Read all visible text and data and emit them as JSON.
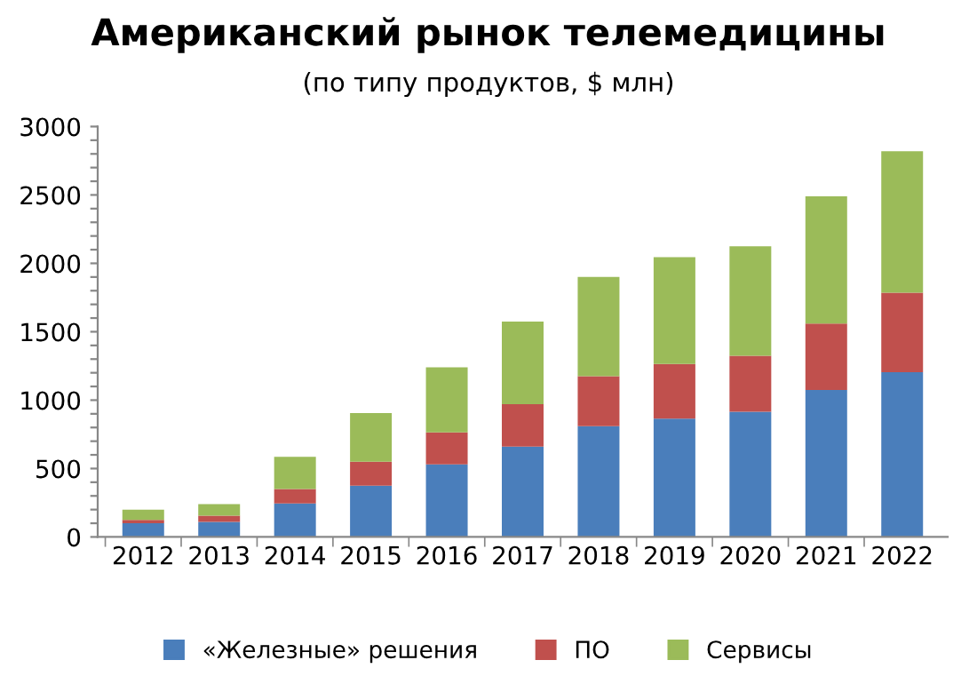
{
  "chart_data": {
    "type": "bar",
    "stacked": true,
    "title": "Американский рынок телемедицины",
    "subtitle": "(по типу продуктов, $ млн)",
    "categories": [
      "2012",
      "2013",
      "2014",
      "2015",
      "2016",
      "2017",
      "2018",
      "2019",
      "2020",
      "2021",
      "2022"
    ],
    "series": [
      {
        "name": "«Железные» решения",
        "color": "#4a7ebb",
        "values": [
          100,
          110,
          245,
          375,
          530,
          660,
          810,
          865,
          915,
          1075,
          1205
        ]
      },
      {
        "name": "ПО",
        "color": "#c0504d",
        "values": [
          25,
          45,
          105,
          175,
          235,
          310,
          365,
          400,
          410,
          485,
          580
        ]
      },
      {
        "name": "Сервисы",
        "color": "#9bbb59",
        "values": [
          75,
          85,
          235,
          355,
          475,
          605,
          725,
          780,
          800,
          930,
          1035
        ]
      }
    ],
    "ylim": [
      0,
      3000
    ],
    "yticks": [
      0,
      {
        "value": 100,
        "label": null
      },
      {
        "value": 200,
        "label": null
      },
      {
        "value": 300,
        "label": null
      },
      {
        "value": 400,
        "label": null
      },
      500,
      {
        "value": 600,
        "label": null
      },
      {
        "value": 700,
        "label": null
      },
      {
        "value": 800,
        "label": null
      },
      {
        "value": 900,
        "label": null
      },
      1000,
      {
        "value": 1100,
        "label": null
      },
      {
        "value": 1200,
        "label": null
      },
      {
        "value": 1300,
        "label": null
      },
      {
        "value": 1400,
        "label": null
      },
      1500,
      {
        "value": 1600,
        "label": null
      },
      {
        "value": 1700,
        "label": null
      },
      {
        "value": 1800,
        "label": null
      },
      {
        "value": 1900,
        "label": null
      },
      2000,
      {
        "value": 2100,
        "label": null
      },
      {
        "value": 2200,
        "label": null
      },
      {
        "value": 2300,
        "label": null
      },
      {
        "value": 2400,
        "label": null
      },
      2500,
      {
        "value": 2600,
        "label": null
      },
      {
        "value": 2700,
        "label": null
      },
      {
        "value": 2800,
        "label": null
      },
      {
        "value": 2900,
        "label": null
      },
      3000
    ],
    "grid": false,
    "legend": "bottom"
  }
}
